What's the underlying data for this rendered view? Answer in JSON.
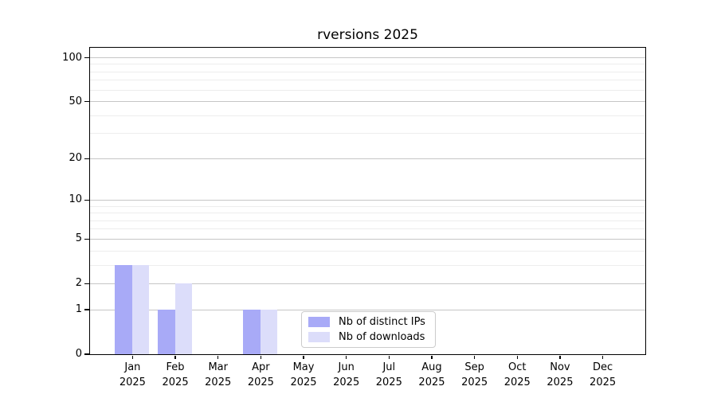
{
  "chart_data": {
    "type": "bar",
    "title": "rversions 2025",
    "categories": [
      "Jan",
      "Feb",
      "Mar",
      "Apr",
      "May",
      "Jun",
      "Jul",
      "Aug",
      "Sep",
      "Oct",
      "Nov",
      "Dec"
    ],
    "x_tick_year": "2025",
    "series": [
      {
        "name": "Nb of distinct IPs",
        "color": "#a8aaf7",
        "values": [
          3,
          1,
          0,
          1,
          0,
          0,
          0,
          0,
          0,
          0,
          0,
          0
        ]
      },
      {
        "name": "Nb of downloads",
        "color": "#dcddfa",
        "values": [
          3,
          2,
          0,
          1,
          0,
          0,
          0,
          0,
          0,
          0,
          0,
          0
        ]
      }
    ],
    "xlabel": "",
    "ylabel": "",
    "yscale": "log1p",
    "ylim": [
      0,
      117
    ],
    "y_major_ticks": [
      0,
      1,
      2,
      5,
      10,
      20,
      50,
      100
    ],
    "y_minor_ticks": [
      3,
      4,
      6,
      7,
      8,
      9,
      30,
      40,
      60,
      70,
      80,
      90
    ],
    "grid": "horizontal",
    "legend_position": "inside bottom center-left",
    "colors": {
      "axis": "#000000",
      "grid_major": "#c6c6c6",
      "grid_minor": "#ededed",
      "legend_border": "#cccccc",
      "text": "#000000"
    }
  }
}
